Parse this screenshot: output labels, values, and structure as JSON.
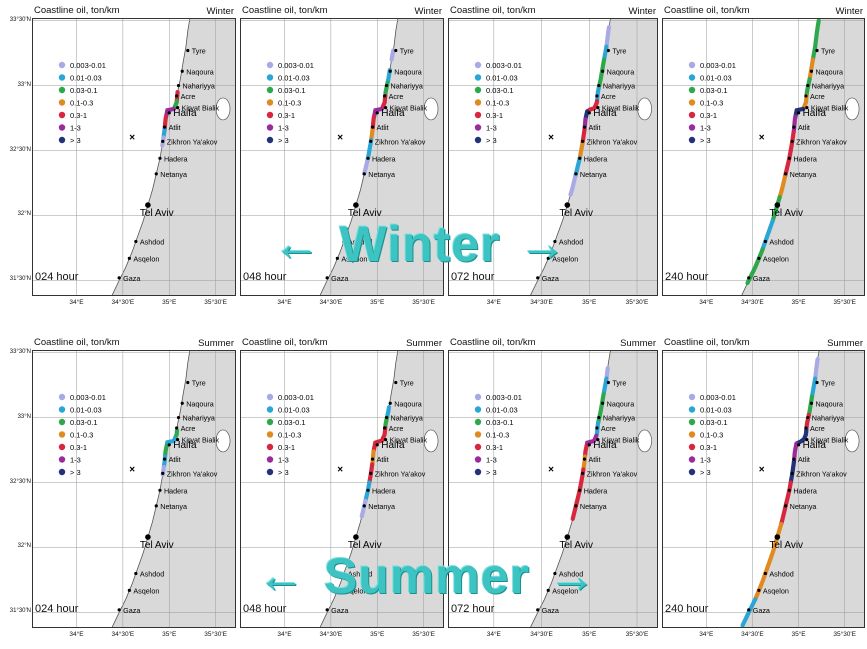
{
  "panels_title": "Coastline oil, ton/km",
  "seasons": [
    {
      "label": "Winter",
      "banner": "Winter"
    },
    {
      "label": "Summer",
      "banner": "Summer"
    }
  ],
  "hours": [
    "024 hour",
    "048 hour",
    "072 hour",
    "240 hour"
  ],
  "legend": {
    "entries": [
      {
        "label": "0.003-0.01",
        "color": "#a9a9e6"
      },
      {
        "label": "0.01-0.03",
        "color": "#2aa6d6"
      },
      {
        "label": "0.03-0.1",
        "color": "#2ea84a"
      },
      {
        "label": "0.1-0.3",
        "color": "#e08a1f"
      },
      {
        "label": "0.3-1",
        "color": "#d7263d"
      },
      {
        "label": "1-3",
        "color": "#9b2a9b"
      },
      {
        "label": "> 3",
        "color": "#23307a"
      }
    ]
  },
  "axes": {
    "lon_ticks": [
      {
        "v": 34,
        "label": "34°E"
      },
      {
        "v": 34.5,
        "label": "34°30'E"
      },
      {
        "v": 35,
        "label": "35°E"
      },
      {
        "v": 35.5,
        "label": "35°30'E"
      }
    ],
    "lat_ticks": [
      {
        "v": 33.5,
        "label": "33°30'N"
      },
      {
        "v": 33,
        "label": "33°N"
      },
      {
        "v": 32.5,
        "label": "32°30'N"
      },
      {
        "v": 32,
        "label": "32°N"
      },
      {
        "v": 31.5,
        "label": "31°30'N"
      }
    ],
    "lon_range": [
      33.52,
      35.72
    ],
    "lat_range": [
      31.38,
      33.52
    ]
  },
  "cities": [
    {
      "name": "Tyre",
      "lon": 35.2,
      "lat": 33.27
    },
    {
      "name": "Naqoura",
      "lon": 35.14,
      "lat": 33.11
    },
    {
      "name": "Nahariyya",
      "lon": 35.1,
      "lat": 33.0
    },
    {
      "name": "Acre",
      "lon": 35.08,
      "lat": 32.92
    },
    {
      "name": "Kiryat Bialik",
      "lon": 35.09,
      "lat": 32.83
    },
    {
      "name": "Haifa",
      "lon": 35.0,
      "lat": 32.79
    },
    {
      "name": "Atlit",
      "lon": 34.95,
      "lat": 32.68
    },
    {
      "name": "Zikhron Ya'akov",
      "lon": 34.93,
      "lat": 32.57
    },
    {
      "name": "Hadera",
      "lon": 34.9,
      "lat": 32.44
    },
    {
      "name": "Netanya",
      "lon": 34.86,
      "lat": 32.32
    },
    {
      "name": "Tel Aviv",
      "lon": 34.77,
      "lat": 32.08
    },
    {
      "name": "Ashdod",
      "lon": 34.64,
      "lat": 31.8
    },
    {
      "name": "Asqelon",
      "lon": 34.57,
      "lat": 31.67
    },
    {
      "name": "Gaza",
      "lon": 34.46,
      "lat": 31.52
    }
  ],
  "release_point": {
    "symbol": "×",
    "lon": 34.6,
    "lat": 32.6
  },
  "maps": [
    {
      "season": "Winter",
      "hour": "024 hour",
      "segments": [
        {
          "lat": [
            32.88,
            32.95
          ],
          "cls": 4
        },
        {
          "lat": [
            32.82,
            32.88
          ],
          "cls": 2
        },
        {
          "lat": [
            32.76,
            32.82
          ],
          "cls": 5
        },
        {
          "lat": [
            32.66,
            32.76
          ],
          "cls": 4
        },
        {
          "lat": [
            32.6,
            32.66
          ],
          "cls": 1
        },
        {
          "lat": [
            32.54,
            32.6
          ],
          "cls": 0
        }
      ]
    },
    {
      "season": "Winter",
      "hour": "048 hour",
      "segments": [
        {
          "lat": [
            33.2,
            33.27
          ],
          "cls": 0
        },
        {
          "lat": [
            33.02,
            33.12
          ],
          "cls": 1
        },
        {
          "lat": [
            32.92,
            33.02
          ],
          "cls": 2
        },
        {
          "lat": [
            32.82,
            32.92
          ],
          "cls": 4
        },
        {
          "lat": [
            32.76,
            32.82
          ],
          "cls": 5
        },
        {
          "lat": [
            32.66,
            32.76
          ],
          "cls": 4
        },
        {
          "lat": [
            32.58,
            32.66
          ],
          "cls": 3
        },
        {
          "lat": [
            32.42,
            32.58
          ],
          "cls": 1
        },
        {
          "lat": [
            32.32,
            32.42
          ],
          "cls": 0
        }
      ]
    },
    {
      "season": "Winter",
      "hour": "072 hour",
      "segments": [
        {
          "lat": [
            33.3,
            33.45
          ],
          "cls": 0
        },
        {
          "lat": [
            33.2,
            33.3
          ],
          "cls": 1
        },
        {
          "lat": [
            33.1,
            33.2
          ],
          "cls": 2
        },
        {
          "lat": [
            32.98,
            33.1
          ],
          "cls": 2
        },
        {
          "lat": [
            32.88,
            32.98
          ],
          "cls": 1
        },
        {
          "lat": [
            32.8,
            32.88
          ],
          "cls": 4
        },
        {
          "lat": [
            32.74,
            32.8
          ],
          "cls": 6
        },
        {
          "lat": [
            32.66,
            32.74
          ],
          "cls": 5
        },
        {
          "lat": [
            32.56,
            32.66
          ],
          "cls": 4
        },
        {
          "lat": [
            32.44,
            32.56
          ],
          "cls": 3
        },
        {
          "lat": [
            32.3,
            32.44
          ],
          "cls": 1
        },
        {
          "lat": [
            32.16,
            32.3
          ],
          "cls": 0
        }
      ]
    },
    {
      "season": "Winter",
      "hour": "240 hour",
      "segments": [
        {
          "lat": [
            33.2,
            33.5
          ],
          "cls": 2
        },
        {
          "lat": [
            33.05,
            33.2
          ],
          "cls": 3
        },
        {
          "lat": [
            32.92,
            33.05
          ],
          "cls": 2
        },
        {
          "lat": [
            32.82,
            32.92
          ],
          "cls": 3
        },
        {
          "lat": [
            32.76,
            32.82
          ],
          "cls": 6
        },
        {
          "lat": [
            32.64,
            32.76
          ],
          "cls": 5
        },
        {
          "lat": [
            32.5,
            32.64
          ],
          "cls": 4
        },
        {
          "lat": [
            32.3,
            32.5
          ],
          "cls": 4
        },
        {
          "lat": [
            32.14,
            32.3
          ],
          "cls": 3
        },
        {
          "lat": [
            31.96,
            32.14
          ],
          "cls": 2
        },
        {
          "lat": [
            31.74,
            31.96
          ],
          "cls": 1
        },
        {
          "lat": [
            31.58,
            31.74
          ],
          "cls": 2
        },
        {
          "lat": [
            31.48,
            31.58
          ],
          "cls": 2
        }
      ]
    },
    {
      "season": "Summer",
      "hour": "024 hour",
      "segments": [
        {
          "lat": [
            32.84,
            32.9
          ],
          "cls": 2
        },
        {
          "lat": [
            32.78,
            32.84
          ],
          "cls": 1
        },
        {
          "lat": [
            32.7,
            32.78
          ],
          "cls": 2
        },
        {
          "lat": [
            32.62,
            32.7
          ],
          "cls": 1
        },
        {
          "lat": [
            32.56,
            32.62
          ],
          "cls": 0
        }
      ]
    },
    {
      "season": "Summer",
      "hour": "048 hour",
      "segments": [
        {
          "lat": [
            33.0,
            33.08
          ],
          "cls": 1
        },
        {
          "lat": [
            32.92,
            33.0
          ],
          "cls": 2
        },
        {
          "lat": [
            32.84,
            32.92
          ],
          "cls": 4
        },
        {
          "lat": [
            32.74,
            32.84
          ],
          "cls": 4
        },
        {
          "lat": [
            32.64,
            32.74
          ],
          "cls": 3
        },
        {
          "lat": [
            32.5,
            32.64
          ],
          "cls": 4
        },
        {
          "lat": [
            32.36,
            32.5
          ],
          "cls": 1
        },
        {
          "lat": [
            32.24,
            32.36
          ],
          "cls": 0
        }
      ]
    },
    {
      "season": "Summer",
      "hour": "072 hour",
      "segments": [
        {
          "lat": [
            33.3,
            33.38
          ],
          "cls": 0
        },
        {
          "lat": [
            33.18,
            33.3
          ],
          "cls": 1
        },
        {
          "lat": [
            33.06,
            33.18
          ],
          "cls": 2
        },
        {
          "lat": [
            32.96,
            33.06
          ],
          "cls": 2
        },
        {
          "lat": [
            32.86,
            32.96
          ],
          "cls": 1
        },
        {
          "lat": [
            32.78,
            32.86
          ],
          "cls": 5
        },
        {
          "lat": [
            32.7,
            32.78
          ],
          "cls": 4
        },
        {
          "lat": [
            32.6,
            32.7
          ],
          "cls": 3
        },
        {
          "lat": [
            32.46,
            32.6
          ],
          "cls": 4
        },
        {
          "lat": [
            32.34,
            32.46
          ],
          "cls": 4
        },
        {
          "lat": [
            32.22,
            32.34
          ],
          "cls": 4
        }
      ]
    },
    {
      "season": "Summer",
      "hour": "240 hour",
      "segments": [
        {
          "lat": [
            33.3,
            33.45
          ],
          "cls": 0
        },
        {
          "lat": [
            33.16,
            33.3
          ],
          "cls": 1
        },
        {
          "lat": [
            33.02,
            33.16
          ],
          "cls": 2
        },
        {
          "lat": [
            32.9,
            33.02
          ],
          "cls": 4
        },
        {
          "lat": [
            32.8,
            32.9
          ],
          "cls": 6
        },
        {
          "lat": [
            32.66,
            32.8
          ],
          "cls": 5
        },
        {
          "lat": [
            32.5,
            32.66
          ],
          "cls": 6
        },
        {
          "lat": [
            32.34,
            32.5
          ],
          "cls": 4
        },
        {
          "lat": [
            32.18,
            32.34
          ],
          "cls": 4
        },
        {
          "lat": [
            32.0,
            32.18
          ],
          "cls": 3
        },
        {
          "lat": [
            31.8,
            32.0
          ],
          "cls": 3
        },
        {
          "lat": [
            31.6,
            31.8
          ],
          "cls": 3
        },
        {
          "lat": [
            31.4,
            31.6
          ],
          "cls": 1
        }
      ]
    }
  ]
}
